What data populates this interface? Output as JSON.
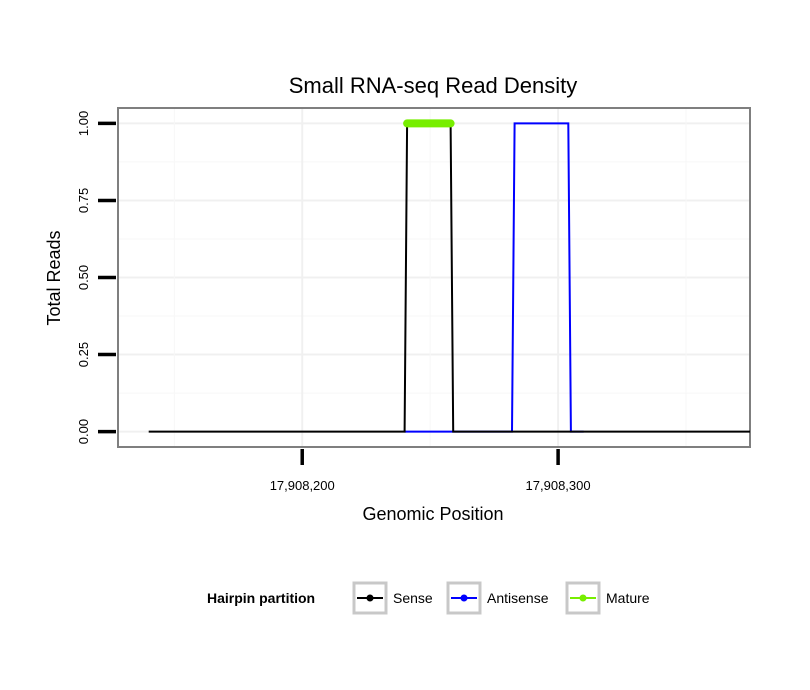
{
  "chart_data": {
    "type": "line",
    "title": "Small RNA-seq Read Density",
    "xlabel": "Genomic Position",
    "ylabel": "Total Reads",
    "xlim": [
      17908128,
      17908375
    ],
    "ylim": [
      -0.05,
      1.05
    ],
    "x_ticks": [
      {
        "value": 17908200,
        "label": "17,908,200"
      },
      {
        "value": 17908300,
        "label": "17,908,300"
      }
    ],
    "y_ticks": [
      {
        "value": 0.0,
        "label": "0.00"
      },
      {
        "value": 0.25,
        "label": "0.25"
      },
      {
        "value": 0.5,
        "label": "0.50"
      },
      {
        "value": 0.75,
        "label": "0.75"
      },
      {
        "value": 1.0,
        "label": "1.00"
      }
    ],
    "grid": true,
    "series": [
      {
        "name": "Sense",
        "color": "#000000",
        "x": [
          17908140,
          17908240,
          17908241,
          17908258,
          17908259,
          17908375
        ],
        "y": [
          0,
          0,
          1,
          1,
          0,
          0
        ]
      },
      {
        "name": "Antisense",
        "color": "#0000ff",
        "x": [
          17908240,
          17908282,
          17908283,
          17908304,
          17908305,
          17908310
        ],
        "y": [
          0,
          0,
          1,
          1,
          0,
          0
        ]
      },
      {
        "name": "Mature",
        "color": "#77ee00",
        "x": [
          17908241,
          17908258
        ],
        "y": [
          1,
          1
        ]
      }
    ],
    "legend": {
      "title": "Hairpin partition",
      "position": "bottom",
      "entries": [
        "Sense",
        "Antisense",
        "Mature"
      ]
    }
  }
}
